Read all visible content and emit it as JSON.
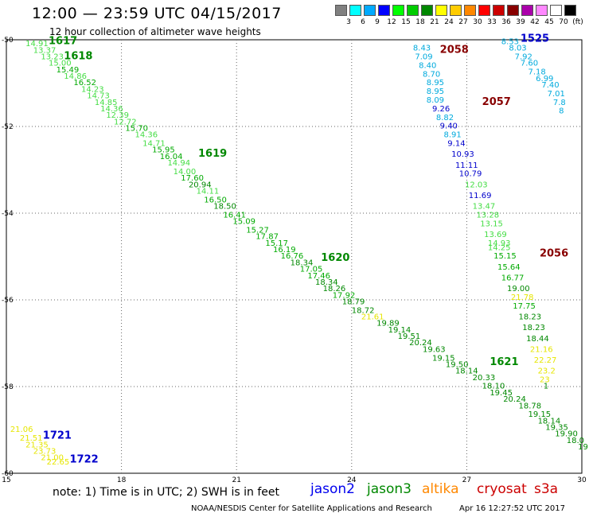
{
  "header": {
    "title": "12:00 — 23:59 UTC 04/15/2017",
    "subtitle": "12 hour collection of altimeter wave heights"
  },
  "scale": {
    "unit": "(ft)",
    "colors": [
      "#808080",
      "#00ffff",
      "#00aaff",
      "#0000ff",
      "#00ff00",
      "#00cc00",
      "#008800",
      "#ffff00",
      "#ffcc00",
      "#ff8800",
      "#ff0000",
      "#cc0000",
      "#880000",
      "#aa00aa",
      "#ff88ff",
      "#ffffff",
      "#000000"
    ],
    "labels": [
      "3",
      "6",
      "9",
      "12",
      "15",
      "18",
      "21",
      "24",
      "27",
      "30",
      "33",
      "36",
      "39",
      "42",
      "45",
      "70"
    ]
  },
  "footer": {
    "note": "note:  1) Time is in UTC;  2) SWH is in feet",
    "credit": "NOAA/NESDIS Center for Satellite Applications and Research",
    "timestamp": "Apr 16 12:27:52 UTC 2017"
  },
  "legend": [
    {
      "name": "jason2",
      "color": "#0000ee"
    },
    {
      "name": "jason3",
      "color": "#008800"
    },
    {
      "name": "altika",
      "color": "#ff8800"
    },
    {
      "name": "cryosat",
      "color": "#cc0000"
    },
    {
      "name": "s3a",
      "color": "#cc0000"
    }
  ],
  "chart_data": {
    "type": "scatter",
    "x_ticks": [
      15,
      18,
      21,
      24,
      27,
      30
    ],
    "y_ticks": [
      -50,
      -52,
      -54,
      -56,
      -58,
      -60
    ],
    "xlim": [
      15,
      30
    ],
    "ylim": [
      -60,
      -50
    ],
    "grid": true,
    "track_labels": [
      {
        "text": "1617",
        "x": 16.1,
        "y": -50.1,
        "color": "#008800"
      },
      {
        "text": "1618",
        "x": 16.5,
        "y": -50.45,
        "color": "#008800"
      },
      {
        "text": "1619",
        "x": 20.0,
        "y": -52.7,
        "color": "#008800"
      },
      {
        "text": "1620",
        "x": 23.2,
        "y": -55.1,
        "color": "#008800"
      },
      {
        "text": "1621",
        "x": 27.6,
        "y": -57.5,
        "color": "#008800"
      },
      {
        "text": "1525",
        "x": 28.4,
        "y": -50.05,
        "color": "#0000cc"
      },
      {
        "text": "2058",
        "x": 26.3,
        "y": -50.3,
        "color": "#880000"
      },
      {
        "text": "2057",
        "x": 27.4,
        "y": -51.5,
        "color": "#880000"
      },
      {
        "text": "2056",
        "x": 28.9,
        "y": -55.0,
        "color": "#880000"
      },
      {
        "text": "1721",
        "x": 15.95,
        "y": -59.2,
        "color": "#0000cc"
      },
      {
        "text": "1722",
        "x": 16.65,
        "y": -59.75,
        "color": "#0000cc"
      }
    ],
    "series": [
      {
        "name": "jason3",
        "points": [
          {
            "x": 15.5,
            "y": -50.15,
            "v": "14.91",
            "c": "#44dd44"
          },
          {
            "x": 15.7,
            "y": -50.3,
            "v": "13.37",
            "c": "#44dd44"
          },
          {
            "x": 15.9,
            "y": -50.45,
            "v": "13.23",
            "c": "#44dd44"
          },
          {
            "x": 16.1,
            "y": -50.6,
            "v": "15.00",
            "c": "#44dd44"
          },
          {
            "x": 16.3,
            "y": -50.75,
            "v": "15.49",
            "c": "#00aa00"
          },
          {
            "x": 16.5,
            "y": -50.9,
            "v": "14.86",
            "c": "#44dd44"
          },
          {
            "x": 16.75,
            "y": -51.05,
            "v": "16.52",
            "c": "#00aa00"
          },
          {
            "x": 16.95,
            "y": -51.2,
            "v": "14.23",
            "c": "#44dd44"
          },
          {
            "x": 17.1,
            "y": -51.35,
            "v": "14.73",
            "c": "#44dd44"
          },
          {
            "x": 17.3,
            "y": -51.5,
            "v": "14.85",
            "c": "#44dd44"
          },
          {
            "x": 17.45,
            "y": -51.65,
            "v": "14.36",
            "c": "#44dd44"
          },
          {
            "x": 17.6,
            "y": -51.8,
            "v": "12.39",
            "c": "#44dd44"
          },
          {
            "x": 17.8,
            "y": -51.95,
            "v": "12.72",
            "c": "#44dd44"
          },
          {
            "x": 18.1,
            "y": -52.1,
            "v": "15.70",
            "c": "#00aa00"
          },
          {
            "x": 18.35,
            "y": -52.25,
            "v": "14.36",
            "c": "#44dd44"
          },
          {
            "x": 18.55,
            "y": -52.45,
            "v": "14.71",
            "c": "#44dd44"
          },
          {
            "x": 18.8,
            "y": -52.6,
            "v": "15.95",
            "c": "#00aa00"
          },
          {
            "x": 19.0,
            "y": -52.75,
            "v": "16.04",
            "c": "#00aa00"
          },
          {
            "x": 19.2,
            "y": -52.9,
            "v": "14.94",
            "c": "#44dd44"
          },
          {
            "x": 19.35,
            "y": -53.1,
            "v": "14.00",
            "c": "#44dd44"
          },
          {
            "x": 19.55,
            "y": -53.25,
            "v": "17.60",
            "c": "#00aa00"
          },
          {
            "x": 19.75,
            "y": -53.4,
            "v": "20.94",
            "c": "#008800"
          },
          {
            "x": 19.95,
            "y": -53.55,
            "v": "14.11",
            "c": "#44dd44"
          },
          {
            "x": 20.15,
            "y": -53.75,
            "v": "16.50",
            "c": "#00aa00"
          },
          {
            "x": 20.4,
            "y": -53.9,
            "v": "18.50",
            "c": "#008800"
          },
          {
            "x": 20.65,
            "y": -54.1,
            "v": "16.41",
            "c": "#00aa00"
          },
          {
            "x": 20.9,
            "y": -54.25,
            "v": "15.09",
            "c": "#00aa00"
          },
          {
            "x": 21.25,
            "y": -54.45,
            "v": "15.27",
            "c": "#00aa00"
          },
          {
            "x": 21.5,
            "y": -54.6,
            "v": "17.87",
            "c": "#00aa00"
          },
          {
            "x": 21.75,
            "y": -54.75,
            "v": "15.17",
            "c": "#00aa00"
          },
          {
            "x": 21.95,
            "y": -54.9,
            "v": "16.19",
            "c": "#00aa00"
          },
          {
            "x": 22.15,
            "y": -55.05,
            "v": "16.76",
            "c": "#00aa00"
          },
          {
            "x": 22.4,
            "y": -55.2,
            "v": "18.34",
            "c": "#008800"
          },
          {
            "x": 22.65,
            "y": -55.35,
            "v": "17.05",
            "c": "#00aa00"
          },
          {
            "x": 22.85,
            "y": -55.5,
            "v": "17.46",
            "c": "#00aa00"
          },
          {
            "x": 23.05,
            "y": -55.65,
            "v": "18.34",
            "c": "#008800"
          },
          {
            "x": 23.25,
            "y": -55.8,
            "v": "18.26",
            "c": "#008800"
          },
          {
            "x": 23.5,
            "y": -55.95,
            "v": "17.92",
            "c": "#00aa00"
          },
          {
            "x": 23.75,
            "y": -56.1,
            "v": "18.79",
            "c": "#008800"
          },
          {
            "x": 24.0,
            "y": -56.3,
            "v": "18.72",
            "c": "#008800"
          },
          {
            "x": 24.25,
            "y": -56.45,
            "v": "21.61",
            "c": "#e6e600"
          },
          {
            "x": 24.65,
            "y": -56.6,
            "v": "19.89",
            "c": "#008800"
          },
          {
            "x": 24.95,
            "y": -56.75,
            "v": "19.14",
            "c": "#008800"
          },
          {
            "x": 25.2,
            "y": -56.9,
            "v": "19.51",
            "c": "#008800"
          },
          {
            "x": 25.5,
            "y": -57.05,
            "v": "20.24",
            "c": "#008800"
          },
          {
            "x": 25.85,
            "y": -57.2,
            "v": "19.63",
            "c": "#008800"
          },
          {
            "x": 26.1,
            "y": -57.4,
            "v": "19.15",
            "c": "#008800"
          },
          {
            "x": 26.45,
            "y": -57.55,
            "v": "19.50",
            "c": "#008800"
          },
          {
            "x": 26.7,
            "y": -57.7,
            "v": "18.14",
            "c": "#008800"
          },
          {
            "x": 27.15,
            "y": -57.85,
            "v": "20.33",
            "c": "#008800"
          },
          {
            "x": 27.4,
            "y": -58.05,
            "v": "18.10",
            "c": "#008800"
          },
          {
            "x": 27.6,
            "y": -58.2,
            "v": "19.45",
            "c": "#008800"
          },
          {
            "x": 27.95,
            "y": -58.35,
            "v": "20.24",
            "c": "#008800"
          },
          {
            "x": 28.35,
            "y": -58.5,
            "v": "18.78",
            "c": "#008800"
          },
          {
            "x": 28.6,
            "y": -58.7,
            "v": "19.15",
            "c": "#008800"
          },
          {
            "x": 28.85,
            "y": -58.85,
            "v": "18.14",
            "c": "#008800"
          },
          {
            "x": 29.05,
            "y": -59.0,
            "v": "19.35",
            "c": "#008800"
          },
          {
            "x": 29.3,
            "y": -59.15,
            "v": "19.90",
            "c": "#008800"
          },
          {
            "x": 29.6,
            "y": -59.3,
            "v": "18.0",
            "c": "#008800"
          },
          {
            "x": 29.9,
            "y": -59.45,
            "v": "19",
            "c": "#008800"
          }
        ]
      },
      {
        "name": "cryosat",
        "points": [
          {
            "x": 25.6,
            "y": -50.25,
            "v": "8.43",
            "c": "#00aadd"
          },
          {
            "x": 25.65,
            "y": -50.45,
            "v": "7.09",
            "c": "#00aadd"
          },
          {
            "x": 25.75,
            "y": -50.65,
            "v": "8.40",
            "c": "#00aadd"
          },
          {
            "x": 25.85,
            "y": -50.85,
            "v": "8.70",
            "c": "#00aadd"
          },
          {
            "x": 25.95,
            "y": -51.05,
            "v": "8.95",
            "c": "#00aadd"
          },
          {
            "x": 25.95,
            "y": -51.25,
            "v": "8.95",
            "c": "#00aadd"
          },
          {
            "x": 25.95,
            "y": -51.45,
            "v": "8.09",
            "c": "#00aadd"
          },
          {
            "x": 26.1,
            "y": -51.65,
            "v": "9.26",
            "c": "#0000cc"
          },
          {
            "x": 26.2,
            "y": -51.85,
            "v": "8.82",
            "c": "#00aadd"
          },
          {
            "x": 26.3,
            "y": -52.05,
            "v": "9.40",
            "c": "#0000cc"
          },
          {
            "x": 26.4,
            "y": -52.25,
            "v": "8.91",
            "c": "#00aadd"
          },
          {
            "x": 26.5,
            "y": -52.45,
            "v": "9.14",
            "c": "#0000cc"
          },
          {
            "x": 26.6,
            "y": -52.7,
            "v": "10.93",
            "c": "#0000cc"
          },
          {
            "x": 26.7,
            "y": -52.95,
            "v": "11.11",
            "c": "#0000cc"
          },
          {
            "x": 26.8,
            "y": -53.15,
            "v": "10.79",
            "c": "#0000cc"
          },
          {
            "x": 26.95,
            "y": -53.4,
            "v": "12.03",
            "c": "#44dd44"
          },
          {
            "x": 27.05,
            "y": -53.65,
            "v": "11.69",
            "c": "#0000cc"
          },
          {
            "x": 27.15,
            "y": -53.9,
            "v": "13.47",
            "c": "#44dd44"
          },
          {
            "x": 27.25,
            "y": -54.1,
            "v": "13.28",
            "c": "#44dd44"
          },
          {
            "x": 27.35,
            "y": -54.3,
            "v": "13.15",
            "c": "#44dd44"
          },
          {
            "x": 27.45,
            "y": -54.55,
            "v": "13.69",
            "c": "#44dd44"
          },
          {
            "x": 27.55,
            "y": -54.75,
            "v": "14.93",
            "c": "#44dd44"
          },
          {
            "x": 27.55,
            "y": -54.85,
            "v": "14.25",
            "c": "#44dd44"
          },
          {
            "x": 27.7,
            "y": -55.05,
            "v": "15.15",
            "c": "#00aa00"
          },
          {
            "x": 27.8,
            "y": -55.3,
            "v": "15.64",
            "c": "#00aa00"
          },
          {
            "x": 27.9,
            "y": -55.55,
            "v": "16.77",
            "c": "#00aa00"
          },
          {
            "x": 28.05,
            "y": -55.8,
            "v": "19.00",
            "c": "#008800"
          },
          {
            "x": 28.15,
            "y": -56.0,
            "v": "21.78",
            "c": "#e6e600"
          },
          {
            "x": 28.2,
            "y": -56.2,
            "v": "17.75",
            "c": "#00aa00"
          },
          {
            "x": 28.35,
            "y": -56.45,
            "v": "18.23",
            "c": "#008800"
          },
          {
            "x": 28.45,
            "y": -56.7,
            "v": "18.23",
            "c": "#008800"
          },
          {
            "x": 28.55,
            "y": -56.95,
            "v": "18.44",
            "c": "#008800"
          },
          {
            "x": 28.65,
            "y": -57.2,
            "v": "21.16",
            "c": "#e6e600"
          },
          {
            "x": 28.75,
            "y": -57.45,
            "v": "22.27",
            "c": "#e6e600"
          },
          {
            "x": 28.85,
            "y": -57.7,
            "v": "23.2",
            "c": "#e6e600"
          },
          {
            "x": 28.9,
            "y": -57.9,
            "v": "23",
            "c": "#e6e600"
          },
          {
            "x": 29.0,
            "y": -58.05,
            "v": "1",
            "c": "#008800"
          }
        ]
      },
      {
        "name": "jason2",
        "points": [
          {
            "x": 27.9,
            "y": -50.1,
            "v": "8.53",
            "c": "#00aadd"
          },
          {
            "x": 28.1,
            "y": -50.25,
            "v": "8.03",
            "c": "#00aadd"
          },
          {
            "x": 28.25,
            "y": -50.45,
            "v": "7.92",
            "c": "#00aadd"
          },
          {
            "x": 28.4,
            "y": -50.6,
            "v": "7.60",
            "c": "#00aadd"
          },
          {
            "x": 28.6,
            "y": -50.8,
            "v": "7.18",
            "c": "#00aadd"
          },
          {
            "x": 28.8,
            "y": -50.95,
            "v": "6.99",
            "c": "#00aadd"
          },
          {
            "x": 28.95,
            "y": -51.1,
            "v": "7.40",
            "c": "#00aadd"
          },
          {
            "x": 29.1,
            "y": -51.3,
            "v": "7.01",
            "c": "#00aadd"
          },
          {
            "x": 29.25,
            "y": -51.5,
            "v": "7.8",
            "c": "#00aadd"
          },
          {
            "x": 29.4,
            "y": -51.7,
            "v": "8",
            "c": "#00aadd"
          }
        ]
      },
      {
        "name": "s3a",
        "points": [
          {
            "x": 15.1,
            "y": -59.05,
            "v": "21.06",
            "c": "#e6e600"
          },
          {
            "x": 15.35,
            "y": -59.25,
            "v": "21.51",
            "c": "#e6e600"
          },
          {
            "x": 15.5,
            "y": -59.4,
            "v": "21.35",
            "c": "#e6e600"
          },
          {
            "x": 15.7,
            "y": -59.55,
            "v": "23.73",
            "c": "#e6e600"
          },
          {
            "x": 15.9,
            "y": -59.7,
            "v": "21.00",
            "c": "#e6e600"
          },
          {
            "x": 16.05,
            "y": -59.8,
            "v": "22.65",
            "c": "#e6e600"
          }
        ]
      }
    ]
  }
}
